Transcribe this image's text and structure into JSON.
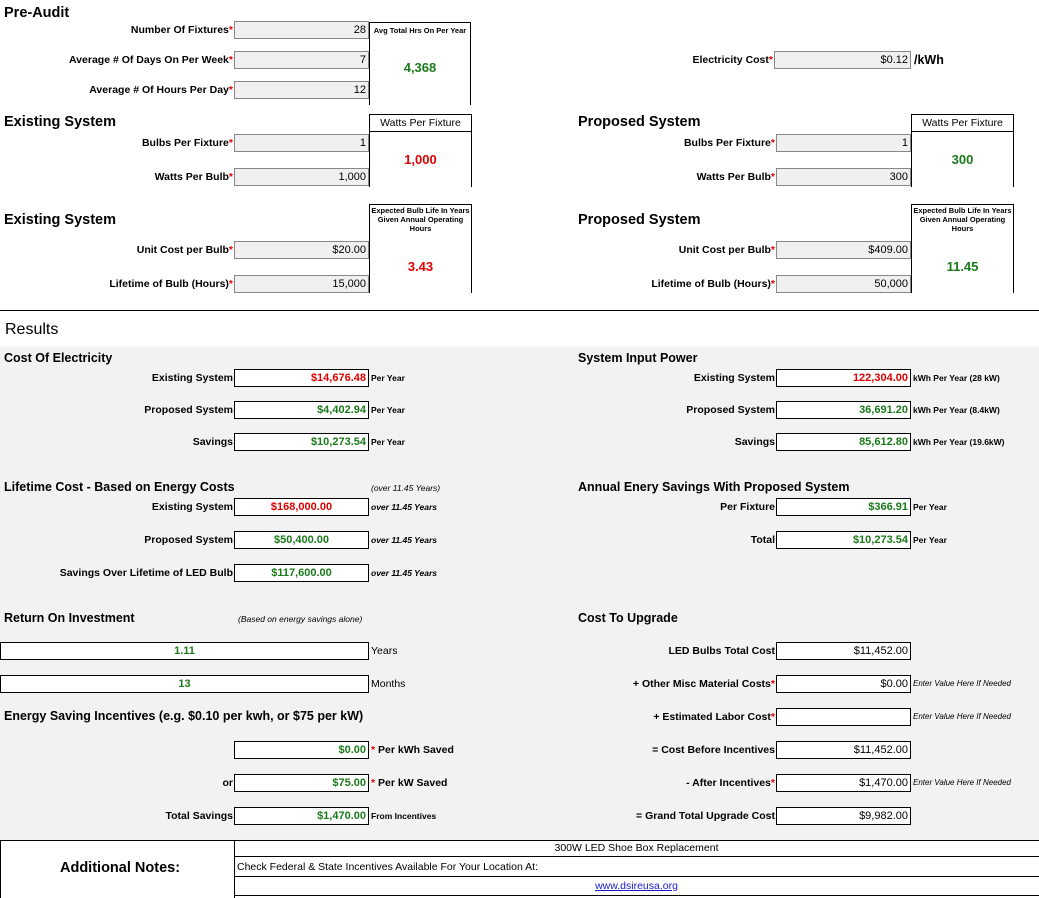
{
  "required_mark": "*",
  "pre_audit": {
    "title": "Pre-Audit",
    "rows": [
      {
        "label": "Number Of Fixtures",
        "value": "28",
        "required": true
      },
      {
        "label": "Average # Of Days On Per Week",
        "value": "7",
        "required": true
      },
      {
        "label": "Average # Of Hours Per Day",
        "value": "12",
        "required": true
      }
    ],
    "header": "Avg Total Hrs On Per Year",
    "result": "4,368",
    "color": "green"
  },
  "electricity": {
    "label": "Electricity Cost",
    "value": "$0.12",
    "unit": "/kWh",
    "required": true
  },
  "existing_watts": {
    "title": "Existing System",
    "rows": [
      {
        "label": "Bulbs Per Fixture",
        "value": "1",
        "required": true
      },
      {
        "label": "Watts Per Bulb",
        "value": "1,000",
        "required": true
      }
    ],
    "header": "Watts Per Fixture",
    "result": "1,000",
    "color": "red"
  },
  "proposed_watts": {
    "title": "Proposed System",
    "rows": [
      {
        "label": "Bulbs Per Fixture",
        "value": "1",
        "required": true
      },
      {
        "label": "Watts Per Bulb",
        "value": "300",
        "required": true
      }
    ],
    "header": "Watts Per Fixture",
    "result": "300",
    "color": "green"
  },
  "existing_life": {
    "title": "Existing System",
    "rows": [
      {
        "label": "Unit Cost per Bulb",
        "value": "$20.00",
        "required": true
      },
      {
        "label": "Lifetime of Bulb (Hours)",
        "value": "15,000",
        "required": true
      }
    ],
    "header": "Expected Bulb Life In Years Given Annual Operating Hours",
    "result": "3.43",
    "color": "red"
  },
  "proposed_life": {
    "title": "Proposed System",
    "rows": [
      {
        "label": "Unit Cost per Bulb",
        "value": "$409.00",
        "required": true
      },
      {
        "label": "Lifetime of Bulb (Hours)",
        "value": "50,000",
        "required": true
      }
    ],
    "header": "Expected Bulb Life In Years Given Annual Operating Hours",
    "result": "11.45",
    "color": "green"
  },
  "results": {
    "title": "Results"
  },
  "cost_of_electricity": {
    "title": "Cost Of Electricity",
    "rows": [
      {
        "label": "Existing System",
        "value": "$14,676.48",
        "unit": "Per Year",
        "color": "red"
      },
      {
        "label": "Proposed System",
        "value": "$4,402.94",
        "unit": "Per Year",
        "color": "green"
      },
      {
        "label": "Savings",
        "value": "$10,273.54",
        "unit": "Per Year",
        "color": "green"
      }
    ]
  },
  "system_input_power": {
    "title": "System Input Power",
    "rows": [
      {
        "label": "Existing System",
        "value": "122,304.00",
        "unit": "kWh Per Year (28 kW)",
        "color": "red"
      },
      {
        "label": "Proposed System",
        "value": "36,691.20",
        "unit": "kWh Per Year (8.4kW)",
        "color": "green"
      },
      {
        "label": "Savings",
        "value": "85,612.80",
        "unit": "kWh Per Year (19.6kW)",
        "color": "green"
      }
    ]
  },
  "lifetime_cost": {
    "title": "Lifetime Cost - Based on Energy Costs",
    "note": "(over 11.45 Years)",
    "rows": [
      {
        "label": "Existing System",
        "value": "$168,000.00",
        "unit": "over 11.45 Years",
        "color": "red"
      },
      {
        "label": "Proposed System",
        "value": "$50,400.00",
        "unit": "over 11.45 Years",
        "color": "green"
      },
      {
        "label": "Savings Over Lifetime of LED Bulb",
        "value": "$117,600.00",
        "unit": "over 11.45 Years",
        "color": "green"
      }
    ]
  },
  "annual_savings": {
    "title": "Annual Enery Savings With Proposed System",
    "rows": [
      {
        "label": "Per Fixture",
        "value": "$366.91",
        "unit": "Per Year",
        "color": "green"
      },
      {
        "label": "Total",
        "value": "$10,273.54",
        "unit": "Per Year",
        "color": "green"
      }
    ]
  },
  "roi": {
    "title": "Return On Investment",
    "note": "(Based on energy savings alone)",
    "rows": [
      {
        "value": "1.11",
        "unit": "Years",
        "color": "green"
      },
      {
        "value": "13",
        "unit": "Months",
        "color": "green"
      }
    ]
  },
  "cost_to_upgrade": {
    "title": "Cost To Upgrade",
    "rows": [
      {
        "label": "LED  Bulbs Total Cost",
        "value": "$11,452.00"
      },
      {
        "label": "+ Other Misc Material Costs",
        "value": "$0.00",
        "required": true,
        "note": "Enter Value Here If Needed"
      },
      {
        "label": "+ Estimated Labor Cost",
        "required": true,
        "note": "Enter Value Here If Needed"
      },
      {
        "label": "= Cost Before Incentives",
        "value": "$11,452.00"
      },
      {
        "label": "- After Incentives",
        "value": "$1,470.00",
        "required": true,
        "note": "Enter Value Here If Needed"
      },
      {
        "label": "= Grand Total Upgrade Cost",
        "value": "$9,982.00"
      }
    ]
  },
  "incentives": {
    "title": "Energy Saving Incentives (e.g. $0.10 per kwh, or $75 per kW)",
    "rows": [
      {
        "value": "$0.00",
        "unit": "Per kWh Saved",
        "required": true,
        "color": "green"
      },
      {
        "label": "or",
        "value": "$75.00",
        "unit": "Per kW Saved",
        "required": true,
        "color": "green"
      },
      {
        "label": "Total Savings",
        "value": "$1,470.00",
        "unit": "From Incentives",
        "color": "green"
      }
    ]
  },
  "notes": {
    "label": "Additional Notes:",
    "lines": [
      "300W LED Shoe Box Replacement",
      "Check Federal & State Incentives Available For Your Location At:"
    ],
    "link": "www.dsireusa.org"
  }
}
